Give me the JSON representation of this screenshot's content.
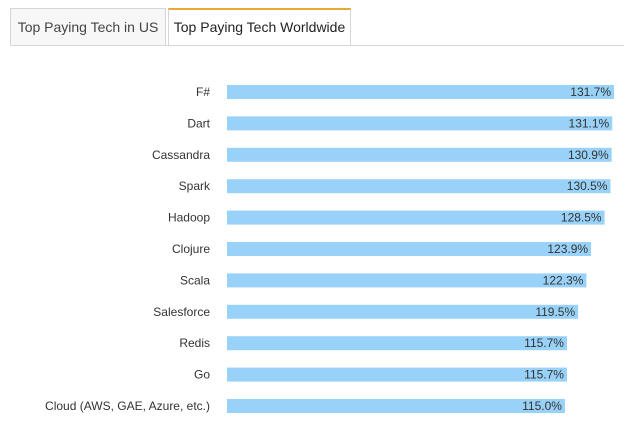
{
  "tabs": [
    {
      "label": "Top Paying Tech in US",
      "active": false
    },
    {
      "label": "Top Paying Tech Worldwide",
      "active": true
    }
  ],
  "colors": {
    "bar": "#99d2f8",
    "tab_accent": "#e8a934"
  },
  "chart_data": {
    "type": "bar",
    "orientation": "horizontal",
    "categories": [
      "F#",
      "Dart",
      "Cassandra",
      "Spark",
      "Hadoop",
      "Clojure",
      "Scala",
      "Salesforce",
      "Redis",
      "Go",
      "Cloud (AWS, GAE, Azure, etc.)"
    ],
    "values": [
      131.7,
      131.1,
      130.9,
      130.5,
      128.5,
      123.9,
      122.3,
      119.5,
      115.7,
      115.7,
      115.0
    ],
    "value_labels": [
      "131.7%",
      "131.1%",
      "130.9%",
      "130.5%",
      "128.5%",
      "123.9%",
      "122.3%",
      "119.5%",
      "115.7%",
      "115.7%",
      "115.0%"
    ],
    "xlim": [
      0,
      131.7
    ],
    "grid": false,
    "legend": "none"
  }
}
